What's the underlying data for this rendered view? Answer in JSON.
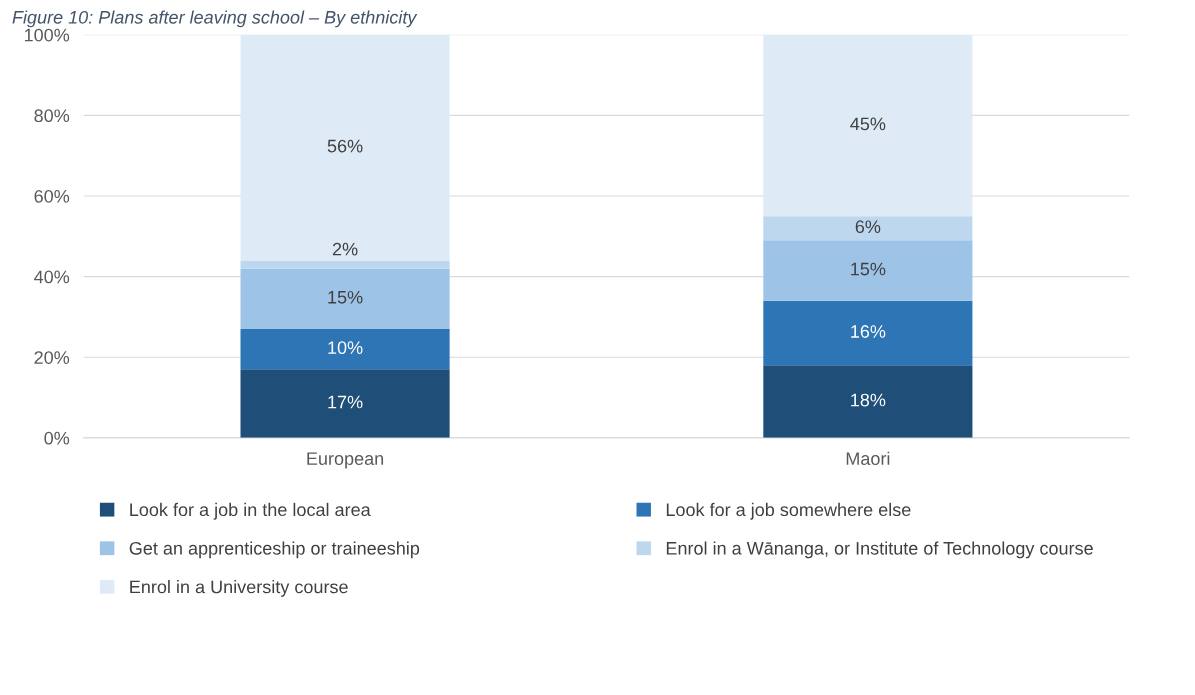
{
  "chart_data": {
    "type": "bar",
    "title": "Figure 10: Plans after leaving school – By ethnicity",
    "stacked": true,
    "categories": [
      "European",
      "Maori"
    ],
    "series": [
      {
        "name": "Look for a job in the local area",
        "color": "#1f4e79",
        "values": [
          17,
          18
        ]
      },
      {
        "name": "Look for a job somewhere else",
        "color": "#2e75b6",
        "values": [
          10,
          16
        ]
      },
      {
        "name": "Get an apprenticeship or traineeship",
        "color": "#9dc3e6",
        "values": [
          15,
          15
        ]
      },
      {
        "name": "Enrol in a Wānanga, or Institute of Technology course",
        "color": "#bdd7ee",
        "values": [
          2,
          6
        ]
      },
      {
        "name": "Enrol in a University course",
        "color": "#deebf7",
        "values": [
          56,
          45
        ]
      }
    ],
    "ylim": [
      0,
      100
    ],
    "yticks": [
      {
        "value": 0,
        "label": "0%"
      },
      {
        "value": 20,
        "label": "20%"
      },
      {
        "value": 40,
        "label": "40%"
      },
      {
        "value": 60,
        "label": "60%"
      },
      {
        "value": 80,
        "label": "80%"
      },
      {
        "value": 100,
        "label": "100%"
      }
    ],
    "grid": "y",
    "legend": "bottom",
    "value_labels": [
      [
        "17%",
        "18%"
      ],
      [
        "10%",
        "16%"
      ],
      [
        "15%",
        "15%"
      ],
      [
        "2%",
        "6%"
      ],
      [
        "56%",
        "45%"
      ]
    ]
  }
}
